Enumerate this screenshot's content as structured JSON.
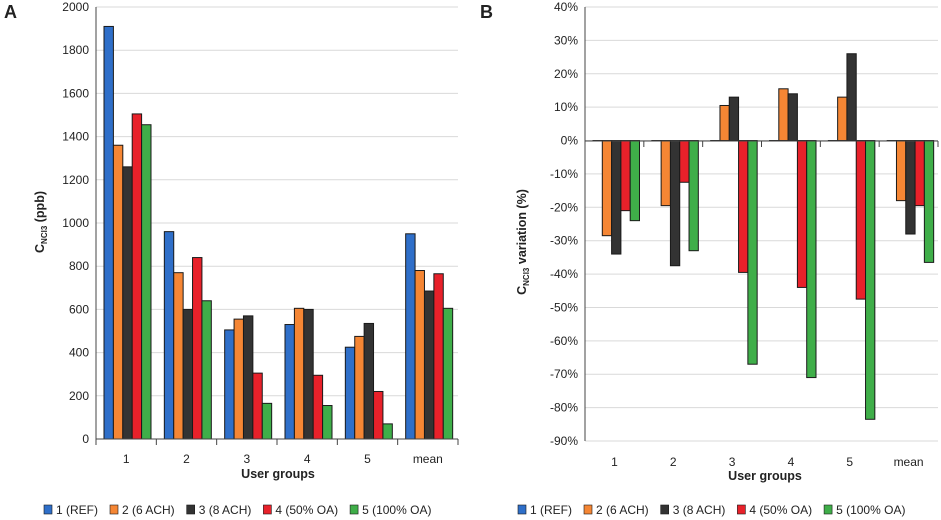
{
  "colors": {
    "series": [
      "#2f6fc9",
      "#f58634",
      "#333333",
      "#e8212a",
      "#3fae49"
    ],
    "grid": "#d9d9d9",
    "axis": "#444444"
  },
  "chart_data": [
    {
      "panel_label": "A",
      "type": "bar",
      "categories": [
        "1",
        "2",
        "3",
        "4",
        "5",
        "mean"
      ],
      "xlabel": "User groups",
      "ylabel_main": "C",
      "ylabel_sub": "NCl3",
      "ylabel_rest": " (ppb)",
      "ylim": [
        0,
        2000
      ],
      "yticks": [
        0,
        200,
        400,
        600,
        800,
        1000,
        1200,
        1400,
        1600,
        1800,
        2000
      ],
      "ytick_labels": [
        "0",
        "200",
        "400",
        "600",
        "800",
        "1000",
        "1200",
        "1400",
        "1600",
        "1800",
        "2000"
      ],
      "grid": true,
      "legend_position": "bottom",
      "series": [
        {
          "name": "1 (REF)",
          "values": [
            1910,
            960,
            505,
            530,
            425,
            950
          ]
        },
        {
          "name": "2 (6 ACH)",
          "values": [
            1360,
            770,
            555,
            605,
            475,
            780
          ]
        },
        {
          "name": "3 (8 ACH)",
          "values": [
            1260,
            600,
            570,
            600,
            535,
            685
          ]
        },
        {
          "name": "4 (50% OA)",
          "values": [
            1505,
            840,
            305,
            295,
            220,
            765
          ]
        },
        {
          "name": "5 (100% OA)",
          "values": [
            1455,
            640,
            165,
            155,
            70,
            605
          ]
        }
      ]
    },
    {
      "panel_label": "B",
      "type": "bar",
      "categories": [
        "1",
        "2",
        "3",
        "4",
        "5",
        "mean"
      ],
      "xlabel": "User groups",
      "ylabel_main": "C",
      "ylabel_sub": "NCl3",
      "ylabel_rest": " variation (%)",
      "ylim": [
        -90,
        40
      ],
      "yticks": [
        -90,
        -80,
        -70,
        -60,
        -50,
        -40,
        -30,
        -20,
        -10,
        0,
        10,
        20,
        30,
        40
      ],
      "ytick_labels": [
        "-90%",
        "-80%",
        "-70%",
        "-60%",
        "-50%",
        "-40%",
        "-30%",
        "-20%",
        "-10%",
        "0%",
        "10%",
        "20%",
        "30%",
        "40%"
      ],
      "grid": true,
      "legend_position": "bottom",
      "series": [
        {
          "name": "1 (REF)",
          "values": [
            0,
            0,
            0,
            0,
            0,
            0
          ]
        },
        {
          "name": "2 (6 ACH)",
          "values": [
            -28.5,
            -19.5,
            10.5,
            15.5,
            13,
            -18
          ]
        },
        {
          "name": "3 (8 ACH)",
          "values": [
            -34,
            -37.5,
            13,
            14,
            26,
            -28
          ]
        },
        {
          "name": "4 (50% OA)",
          "values": [
            -21,
            -12.5,
            -39.5,
            -44,
            -47.5,
            -19.5
          ]
        },
        {
          "name": "5 (100% OA)",
          "values": [
            -24,
            -33,
            -67,
            -71,
            -83.5,
            -36.5
          ]
        }
      ]
    }
  ]
}
